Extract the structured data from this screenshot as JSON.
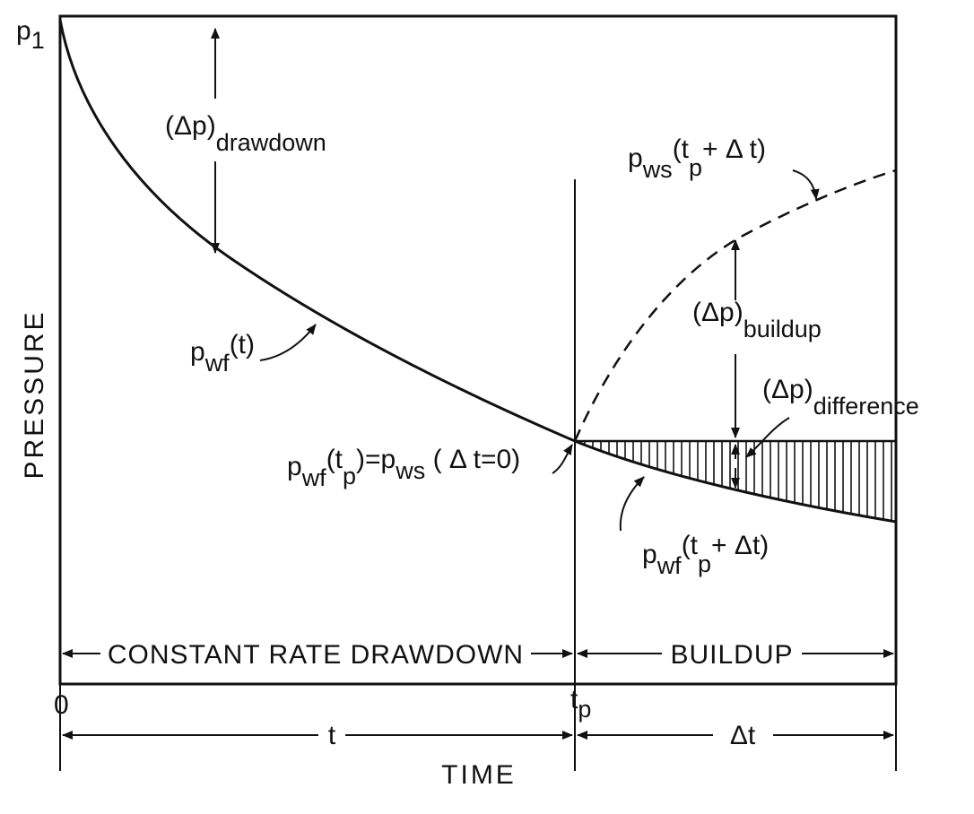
{
  "axes": {
    "y_label": "PRESSURE",
    "x_label": "TIME",
    "y_top_label": {
      "main": "p",
      "sub": "1"
    },
    "origin_label": "0",
    "tp_label": {
      "main": "t",
      "sub": "p"
    }
  },
  "phases": {
    "drawdown": "CONSTANT RATE DRAWDOWN",
    "buildup": "BUILDUP"
  },
  "intervals": {
    "t": "t",
    "dt": "Δt"
  },
  "labels": {
    "dp_drawdown": {
      "main": "(Δp)",
      "sub": "drawdown"
    },
    "dp_buildup": {
      "main": "(Δp)",
      "sub": "buildup"
    },
    "dp_difference": {
      "main": "(Δp)",
      "sub": "difference"
    },
    "pwf_t": {
      "p": "p",
      "s1": "wf",
      "arg": "(t)"
    },
    "pws_tp_dt": {
      "p": "p",
      "s1": "ws",
      "a": "(t",
      "s2": "p",
      "b": "+ Δ t)"
    },
    "pwf_tp_eq": {
      "p": "p",
      "s1": "wf",
      "a": "(t",
      "s2": "p",
      "b": ")=p",
      "s3": "ws",
      "c": " ( Δ t=0)"
    },
    "pwf_tp_dt": {
      "p": "p",
      "s1": "wf",
      "a": "(t",
      "s2": "p",
      "b": "+ Δt)"
    }
  }
}
